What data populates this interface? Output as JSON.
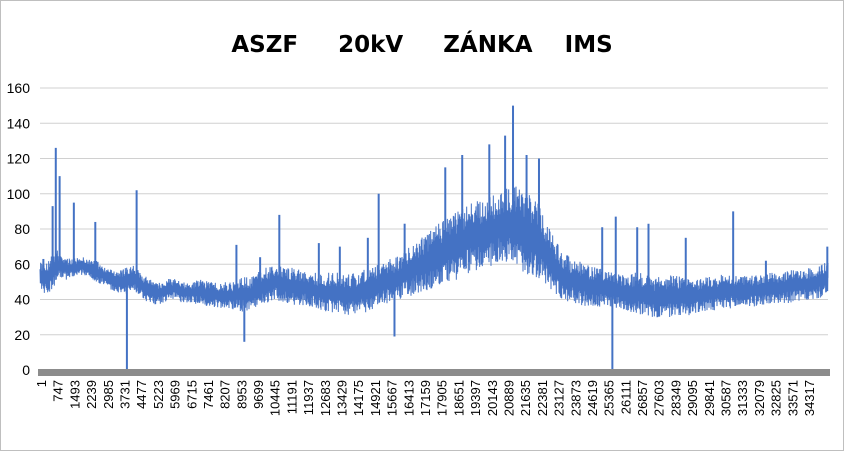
{
  "chart_data": {
    "type": "line",
    "title": "ASZF     20kV     ZÁNKA    IMS",
    "xlabel": "",
    "ylabel": "",
    "ylim": [
      0,
      160
    ],
    "yticks": [
      0,
      20,
      40,
      60,
      80,
      100,
      120,
      140,
      160
    ],
    "xlim": [
      1,
      34900
    ],
    "xticks": [
      "1",
      "747",
      "1493",
      "2239",
      "2985",
      "3731",
      "4477",
      "5223",
      "5969",
      "6715",
      "7461",
      "8207",
      "8953",
      "9699",
      "10445",
      "11191",
      "11937",
      "12683",
      "13429",
      "14175",
      "14921",
      "15667",
      "16413",
      "17159",
      "17905",
      "18651",
      "19397",
      "20143",
      "20889",
      "21635",
      "22381",
      "23127",
      "23873",
      "24619",
      "25365",
      "26111",
      "26857",
      "27603",
      "28349",
      "29095",
      "29841",
      "30587",
      "31333",
      "32079",
      "32825",
      "33571",
      "34317"
    ],
    "grid": "horizontal",
    "legend": "none",
    "series_color": "#4472c4",
    "envelope_x": [
      1,
      250,
      500,
      747,
      1000,
      1200,
      1493,
      1800,
      2000,
      2239,
      2500,
      2985,
      3300,
      3731,
      4000,
      4200,
      4477,
      4800,
      5223,
      5600,
      5969,
      6300,
      6715,
      7100,
      7461,
      7800,
      8207,
      8500,
      8953,
      9300,
      9699,
      10000,
      10445,
      10800,
      11191,
      11500,
      11937,
      12300,
      12683,
      13000,
      13429,
      13800,
      14175,
      14500,
      14921,
      15300,
      15667,
      16000,
      16413,
      16800,
      17159,
      17500,
      17905,
      18300,
      18651,
      19000,
      19397,
      19800,
      20143,
      20500,
      20889,
      21200,
      21635,
      22000,
      22381,
      22700,
      23127,
      23500,
      23873,
      24200,
      24619,
      25000,
      25365,
      25700,
      26111,
      26500,
      26857,
      27200,
      27603,
      28000,
      28349,
      28700,
      29095,
      29500,
      29841,
      30200,
      30587,
      31000,
      31333,
      31700,
      32079,
      32400,
      32825,
      33200,
      33571,
      33900,
      34317,
      34600,
      34900
    ],
    "envelope_low": [
      44,
      43,
      45,
      50,
      52,
      51,
      53,
      54,
      53,
      52,
      50,
      47,
      44,
      43,
      44,
      45,
      41,
      38,
      37,
      39,
      40,
      38,
      38,
      37,
      36,
      35,
      35,
      34,
      33,
      34,
      36,
      38,
      40,
      38,
      37,
      37,
      36,
      34,
      33,
      32,
      31,
      31,
      32,
      33,
      36,
      37,
      38,
      40,
      42,
      44,
      45,
      47,
      49,
      50,
      52,
      55,
      57,
      58,
      60,
      60,
      58,
      56,
      54,
      52,
      48,
      44,
      40,
      38,
      37,
      36,
      35,
      35,
      36,
      34,
      33,
      32,
      30,
      29,
      29,
      30,
      31,
      31,
      32,
      33,
      33,
      34,
      35,
      35,
      36,
      36,
      37,
      37,
      38,
      38,
      39,
      39,
      40,
      41,
      42
    ],
    "envelope_high": [
      62,
      60,
      65,
      68,
      66,
      64,
      63,
      65,
      64,
      63,
      62,
      58,
      56,
      58,
      60,
      60,
      55,
      52,
      50,
      52,
      52,
      50,
      50,
      52,
      50,
      50,
      50,
      50,
      54,
      52,
      56,
      58,
      60,
      58,
      58,
      57,
      56,
      55,
      55,
      56,
      54,
      55,
      56,
      58,
      60,
      62,
      64,
      66,
      72,
      74,
      78,
      82,
      86,
      88,
      92,
      95,
      96,
      97,
      100,
      104,
      106,
      104,
      100,
      96,
      86,
      78,
      66,
      64,
      62,
      60,
      58,
      58,
      56,
      54,
      54,
      56,
      54,
      52,
      54,
      54,
      53,
      52,
      52,
      53,
      54,
      55,
      55,
      54,
      54,
      54,
      55,
      56,
      56,
      57,
      57,
      58,
      58,
      60,
      63
    ],
    "spikes": [
      {
        "x": 150,
        "y": 63
      },
      {
        "x": 560,
        "y": 93
      },
      {
        "x": 700,
        "y": 126
      },
      {
        "x": 870,
        "y": 110
      },
      {
        "x": 1500,
        "y": 95
      },
      {
        "x": 2450,
        "y": 84
      },
      {
        "x": 3850,
        "y": 0
      },
      {
        "x": 4280,
        "y": 102
      },
      {
        "x": 8700,
        "y": 71
      },
      {
        "x": 9050,
        "y": 16
      },
      {
        "x": 9750,
        "y": 64
      },
      {
        "x": 10600,
        "y": 88
      },
      {
        "x": 12350,
        "y": 72
      },
      {
        "x": 13280,
        "y": 70
      },
      {
        "x": 14520,
        "y": 75
      },
      {
        "x": 15000,
        "y": 100
      },
      {
        "x": 15700,
        "y": 19
      },
      {
        "x": 16150,
        "y": 83
      },
      {
        "x": 17950,
        "y": 115
      },
      {
        "x": 18700,
        "y": 122
      },
      {
        "x": 19900,
        "y": 128
      },
      {
        "x": 20600,
        "y": 133
      },
      {
        "x": 20950,
        "y": 150
      },
      {
        "x": 21550,
        "y": 122
      },
      {
        "x": 22100,
        "y": 120
      },
      {
        "x": 23350,
        "y": 65
      },
      {
        "x": 24900,
        "y": 81
      },
      {
        "x": 25350,
        "y": 0
      },
      {
        "x": 25500,
        "y": 87
      },
      {
        "x": 26450,
        "y": 81
      },
      {
        "x": 26950,
        "y": 83
      },
      {
        "x": 28600,
        "y": 75
      },
      {
        "x": 30700,
        "y": 90
      },
      {
        "x": 32150,
        "y": 62
      },
      {
        "x": 34870,
        "y": 70
      }
    ]
  }
}
